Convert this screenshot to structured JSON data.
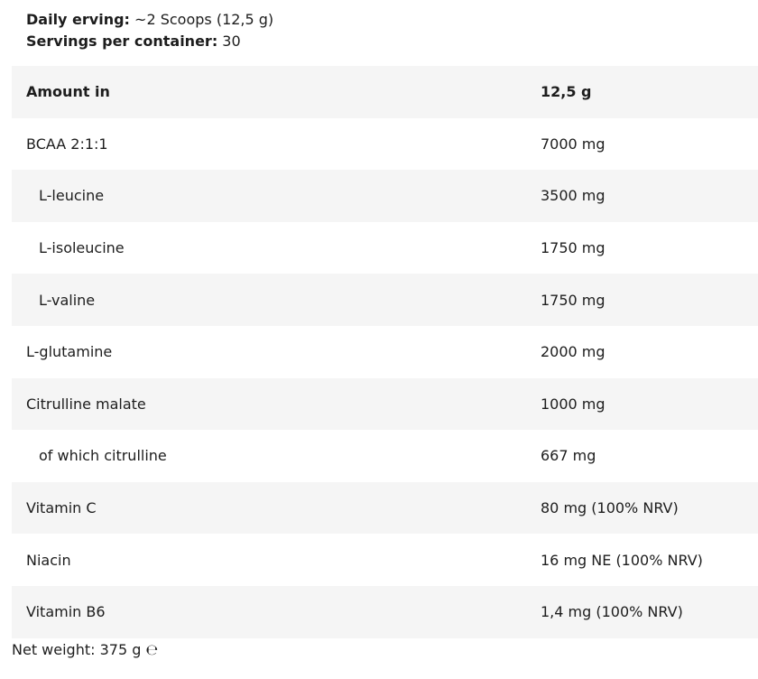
{
  "serving": {
    "daily_label": "Daily erving:",
    "daily_value": " ~2 Scoops (12,5 g)",
    "servings_label": "Servings per container:",
    "servings_value": " 30"
  },
  "table": {
    "header": {
      "label": "Amount in",
      "value": "12,5 g"
    },
    "rows": [
      {
        "label": "BCAA 2:1:1",
        "value": "7000 mg",
        "indent": false
      },
      {
        "label": "L-leucine",
        "value": "3500 mg",
        "indent": true
      },
      {
        "label": "L-isoleucine",
        "value": "1750 mg",
        "indent": true
      },
      {
        "label": "L-valine",
        "value": "1750 mg",
        "indent": true
      },
      {
        "label": "L-glutamine",
        "value": "2000 mg",
        "indent": false
      },
      {
        "label": "Citrulline malate",
        "value": "1000 mg",
        "indent": false
      },
      {
        "label": "of which citrulline",
        "value": "667 mg",
        "indent": true
      },
      {
        "label": "Vitamin C",
        "value": "80 mg (100% NRV)",
        "indent": false
      },
      {
        "label": "Niacin",
        "value": "16 mg NE (100% NRV)",
        "indent": false
      },
      {
        "label": "Vitamin B6",
        "value": "1,4 mg (100% NRV)",
        "indent": false
      }
    ]
  },
  "net_weight": "Net weight: 375 g ℮"
}
